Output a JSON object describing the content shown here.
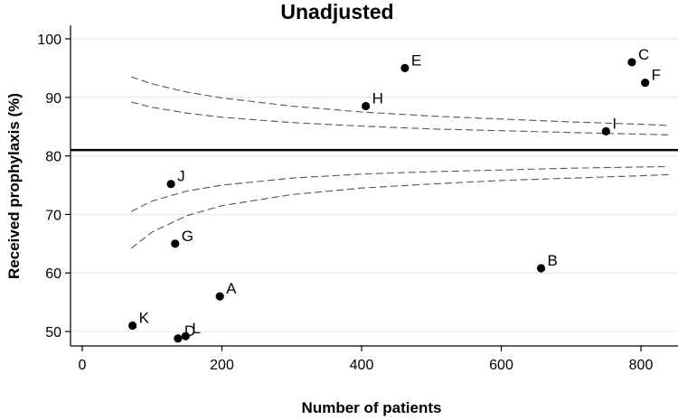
{
  "chart_data": {
    "type": "scatter",
    "title": "Unadjusted",
    "xlabel": "Number of patients",
    "ylabel": "Received prophylaxis (%)",
    "xlim": [
      -20,
      850
    ],
    "ylim": [
      47,
      102
    ],
    "xticks": [
      0,
      200,
      400,
      600,
      800
    ],
    "yticks": [
      50,
      60,
      70,
      80,
      90,
      100
    ],
    "yticklabels": [
      "50",
      "60",
      "70",
      "80",
      "90",
      "100"
    ],
    "grid": true,
    "reference_line": 81,
    "points": [
      {
        "label": "A",
        "x": 197,
        "y": 56
      },
      {
        "label": "B",
        "x": 657,
        "y": 60.8
      },
      {
        "label": "C",
        "x": 787,
        "y": 96
      },
      {
        "label": "D",
        "x": 137,
        "y": 48.8
      },
      {
        "label": "L",
        "x": 148,
        "y": 49.2
      },
      {
        "label": "E",
        "x": 462,
        "y": 95
      },
      {
        "label": "F",
        "x": 806,
        "y": 92.5
      },
      {
        "label": "G",
        "x": 133,
        "y": 65
      },
      {
        "label": "H",
        "x": 406,
        "y": 88.5
      },
      {
        "label": "I",
        "x": 750,
        "y": 84.2
      },
      {
        "label": "J",
        "x": 127,
        "y": 75.2
      },
      {
        "label": "K",
        "x": 72,
        "y": 51
      }
    ],
    "control_limits": [
      {
        "name": "upper outer",
        "x": [
          70,
          100,
          150,
          200,
          300,
          400,
          500,
          600,
          700,
          800,
          840
        ],
        "y": [
          93.5,
          92.3,
          90.9,
          89.9,
          88.5,
          87.5,
          86.8,
          86.3,
          85.8,
          85.4,
          85.2
        ]
      },
      {
        "name": "upper inner",
        "x": [
          70,
          100,
          150,
          200,
          300,
          400,
          500,
          600,
          700,
          800,
          840
        ],
        "y": [
          89.2,
          88.3,
          87.3,
          86.6,
          85.7,
          85.1,
          84.6,
          84.3,
          84.0,
          83.7,
          83.6
        ]
      },
      {
        "name": "lower inner",
        "x": [
          70,
          100,
          150,
          200,
          300,
          400,
          500,
          600,
          700,
          800,
          840
        ],
        "y": [
          70.5,
          72.3,
          74.0,
          75.0,
          76.2,
          76.9,
          77.3,
          77.6,
          77.9,
          78.1,
          78.2
        ]
      },
      {
        "name": "lower outer",
        "x": [
          70,
          100,
          150,
          200,
          300,
          400,
          500,
          600,
          700,
          800,
          840
        ],
        "y": [
          64.2,
          67.0,
          69.8,
          71.5,
          73.4,
          74.5,
          75.2,
          75.8,
          76.2,
          76.6,
          76.8
        ]
      }
    ]
  }
}
